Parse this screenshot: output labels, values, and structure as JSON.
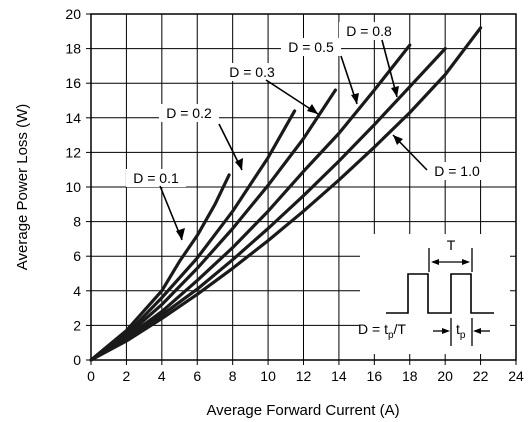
{
  "chart_data": {
    "type": "line",
    "xlabel": "Average Forward Current (A)",
    "ylabel": "Average Power Loss (W)",
    "xlim": [
      0,
      24
    ],
    "ylim": [
      0,
      20
    ],
    "xticks": [
      "0",
      "2",
      "4",
      "6",
      "8",
      "10",
      "12",
      "14",
      "16",
      "18",
      "20",
      "22",
      "24"
    ],
    "yticks": [
      "0",
      "2",
      "4",
      "6",
      "8",
      "10",
      "12",
      "14",
      "16",
      "18",
      "20"
    ],
    "grid": true,
    "series": [
      {
        "name": "D = 0.1",
        "x": [
          0,
          2,
          4,
          5,
          6,
          7,
          7.8
        ],
        "y": [
          0,
          1.7,
          4.0,
          5.7,
          7.2,
          9.0,
          10.7
        ]
      },
      {
        "name": "D = 0.2",
        "x": [
          0,
          2,
          4,
          6,
          8,
          10,
          11.5
        ],
        "y": [
          0,
          1.5,
          3.6,
          5.9,
          8.6,
          11.7,
          14.4
        ]
      },
      {
        "name": "D = 0.3",
        "x": [
          0,
          2,
          4,
          6,
          8,
          10,
          12,
          13.8
        ],
        "y": [
          0,
          1.4,
          3.2,
          5.3,
          7.6,
          10.1,
          12.8,
          15.6
        ]
      },
      {
        "name": "D = 0.5",
        "x": [
          0,
          2,
          4,
          6,
          8,
          10,
          12,
          14,
          16,
          18
        ],
        "y": [
          0,
          1.3,
          2.8,
          4.6,
          6.5,
          8.6,
          10.9,
          13.1,
          15.6,
          18.2
        ]
      },
      {
        "name": "D = 0.8",
        "x": [
          0,
          2,
          4,
          6,
          8,
          10,
          12,
          14,
          16,
          18,
          20
        ],
        "y": [
          0,
          1.2,
          2.6,
          4.1,
          5.8,
          7.6,
          9.5,
          11.5,
          13.6,
          15.8,
          18.0
        ]
      },
      {
        "name": "D = 1.0",
        "x": [
          0,
          2,
          4,
          6,
          8,
          10,
          12,
          14,
          16,
          18,
          20,
          22
        ],
        "y": [
          0,
          1.1,
          2.4,
          3.8,
          5.3,
          6.9,
          8.6,
          10.4,
          12.3,
          14.3,
          16.5,
          19.2
        ]
      }
    ],
    "annotations": {
      "d01": "D = 0.1",
      "d02": "D = 0.2",
      "d03": "D = 0.3",
      "d05": "D = 0.5",
      "d08": "D = 0.8",
      "d10": "D = 1.0",
      "inset_period": "T",
      "inset_duty_prefix": "D = t",
      "inset_duty_sub": "p",
      "inset_duty_suffix": "/T",
      "inset_pulse_main": "t",
      "inset_pulse_sub": "p"
    },
    "colors": {
      "lines": "#1a1a1a",
      "grid": "#000000",
      "background": "#ffffff"
    }
  }
}
